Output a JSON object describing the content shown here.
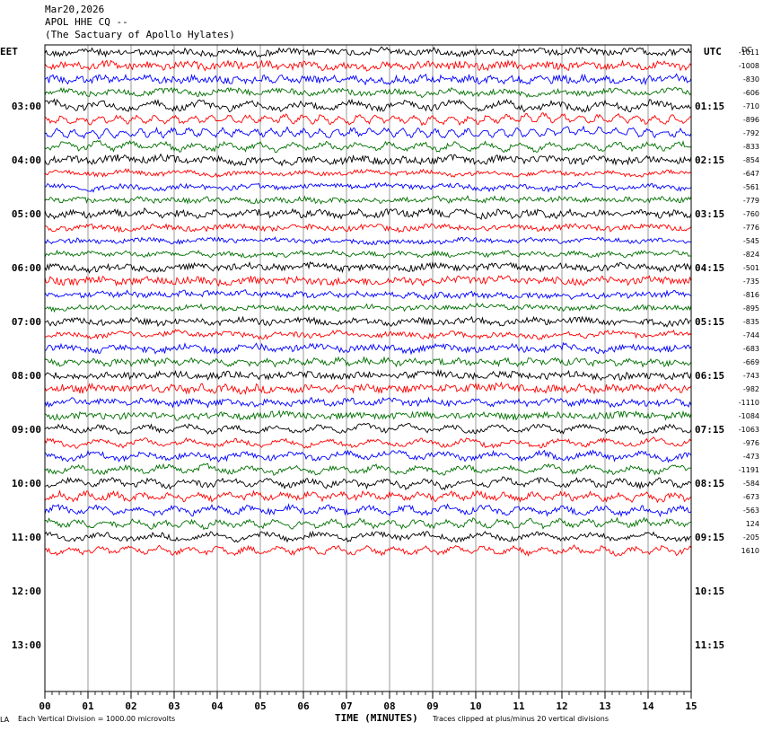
{
  "header": {
    "date": "Mar20,2026",
    "station": "APOL HHE CQ --",
    "site": "(The Sactuary of Apollo Hylates)"
  },
  "chart_data": {
    "type": "line",
    "left_axis_label": "EET",
    "right_axis_label": "UTC",
    "dc_label": "DC",
    "xlabel": "TIME (MINUTES)",
    "x_ticks": [
      "00",
      "01",
      "02",
      "03",
      "04",
      "05",
      "06",
      "07",
      "08",
      "09",
      "10",
      "11",
      "12",
      "13",
      "14",
      "15"
    ],
    "xlim": [
      0,
      15
    ],
    "left_hour_labels": [
      "03:00",
      "04:00",
      "05:00",
      "06:00",
      "07:00",
      "08:00",
      "09:00",
      "10:00",
      "11:00",
      "12:00",
      "13:00"
    ],
    "right_hour_labels": [
      "01:15",
      "02:15",
      "03:15",
      "04:15",
      "05:15",
      "06:15",
      "07:15",
      "08:15",
      "09:15",
      "10:15",
      "11:15"
    ],
    "first_row_hour_index": 0,
    "trace_colors": [
      "#000000",
      "#ff0000",
      "#0000ff",
      "#007000"
    ],
    "dc_offsets": [
      -1011,
      -1008,
      -830,
      -606,
      -710,
      -896,
      -792,
      -833,
      -854,
      -647,
      -561,
      -779,
      -760,
      -776,
      -545,
      -824,
      -501,
      -735,
      -816,
      -895,
      -835,
      -744,
      -683,
      -669,
      -743,
      -982,
      -1110,
      -1084,
      -1063,
      -976,
      -473,
      -1191,
      -584,
      -673,
      -563,
      124,
      -205,
      1610
    ],
    "traces_per_hour": 4,
    "trace_count": 38,
    "last_trace_end_minutes": 15,
    "scale_note": "Each Vertical Division = 1000.00 microvolts",
    "clip_note": "Traces clipped at plus/minus 20 vertical divisions",
    "corner_mark": "LA"
  }
}
